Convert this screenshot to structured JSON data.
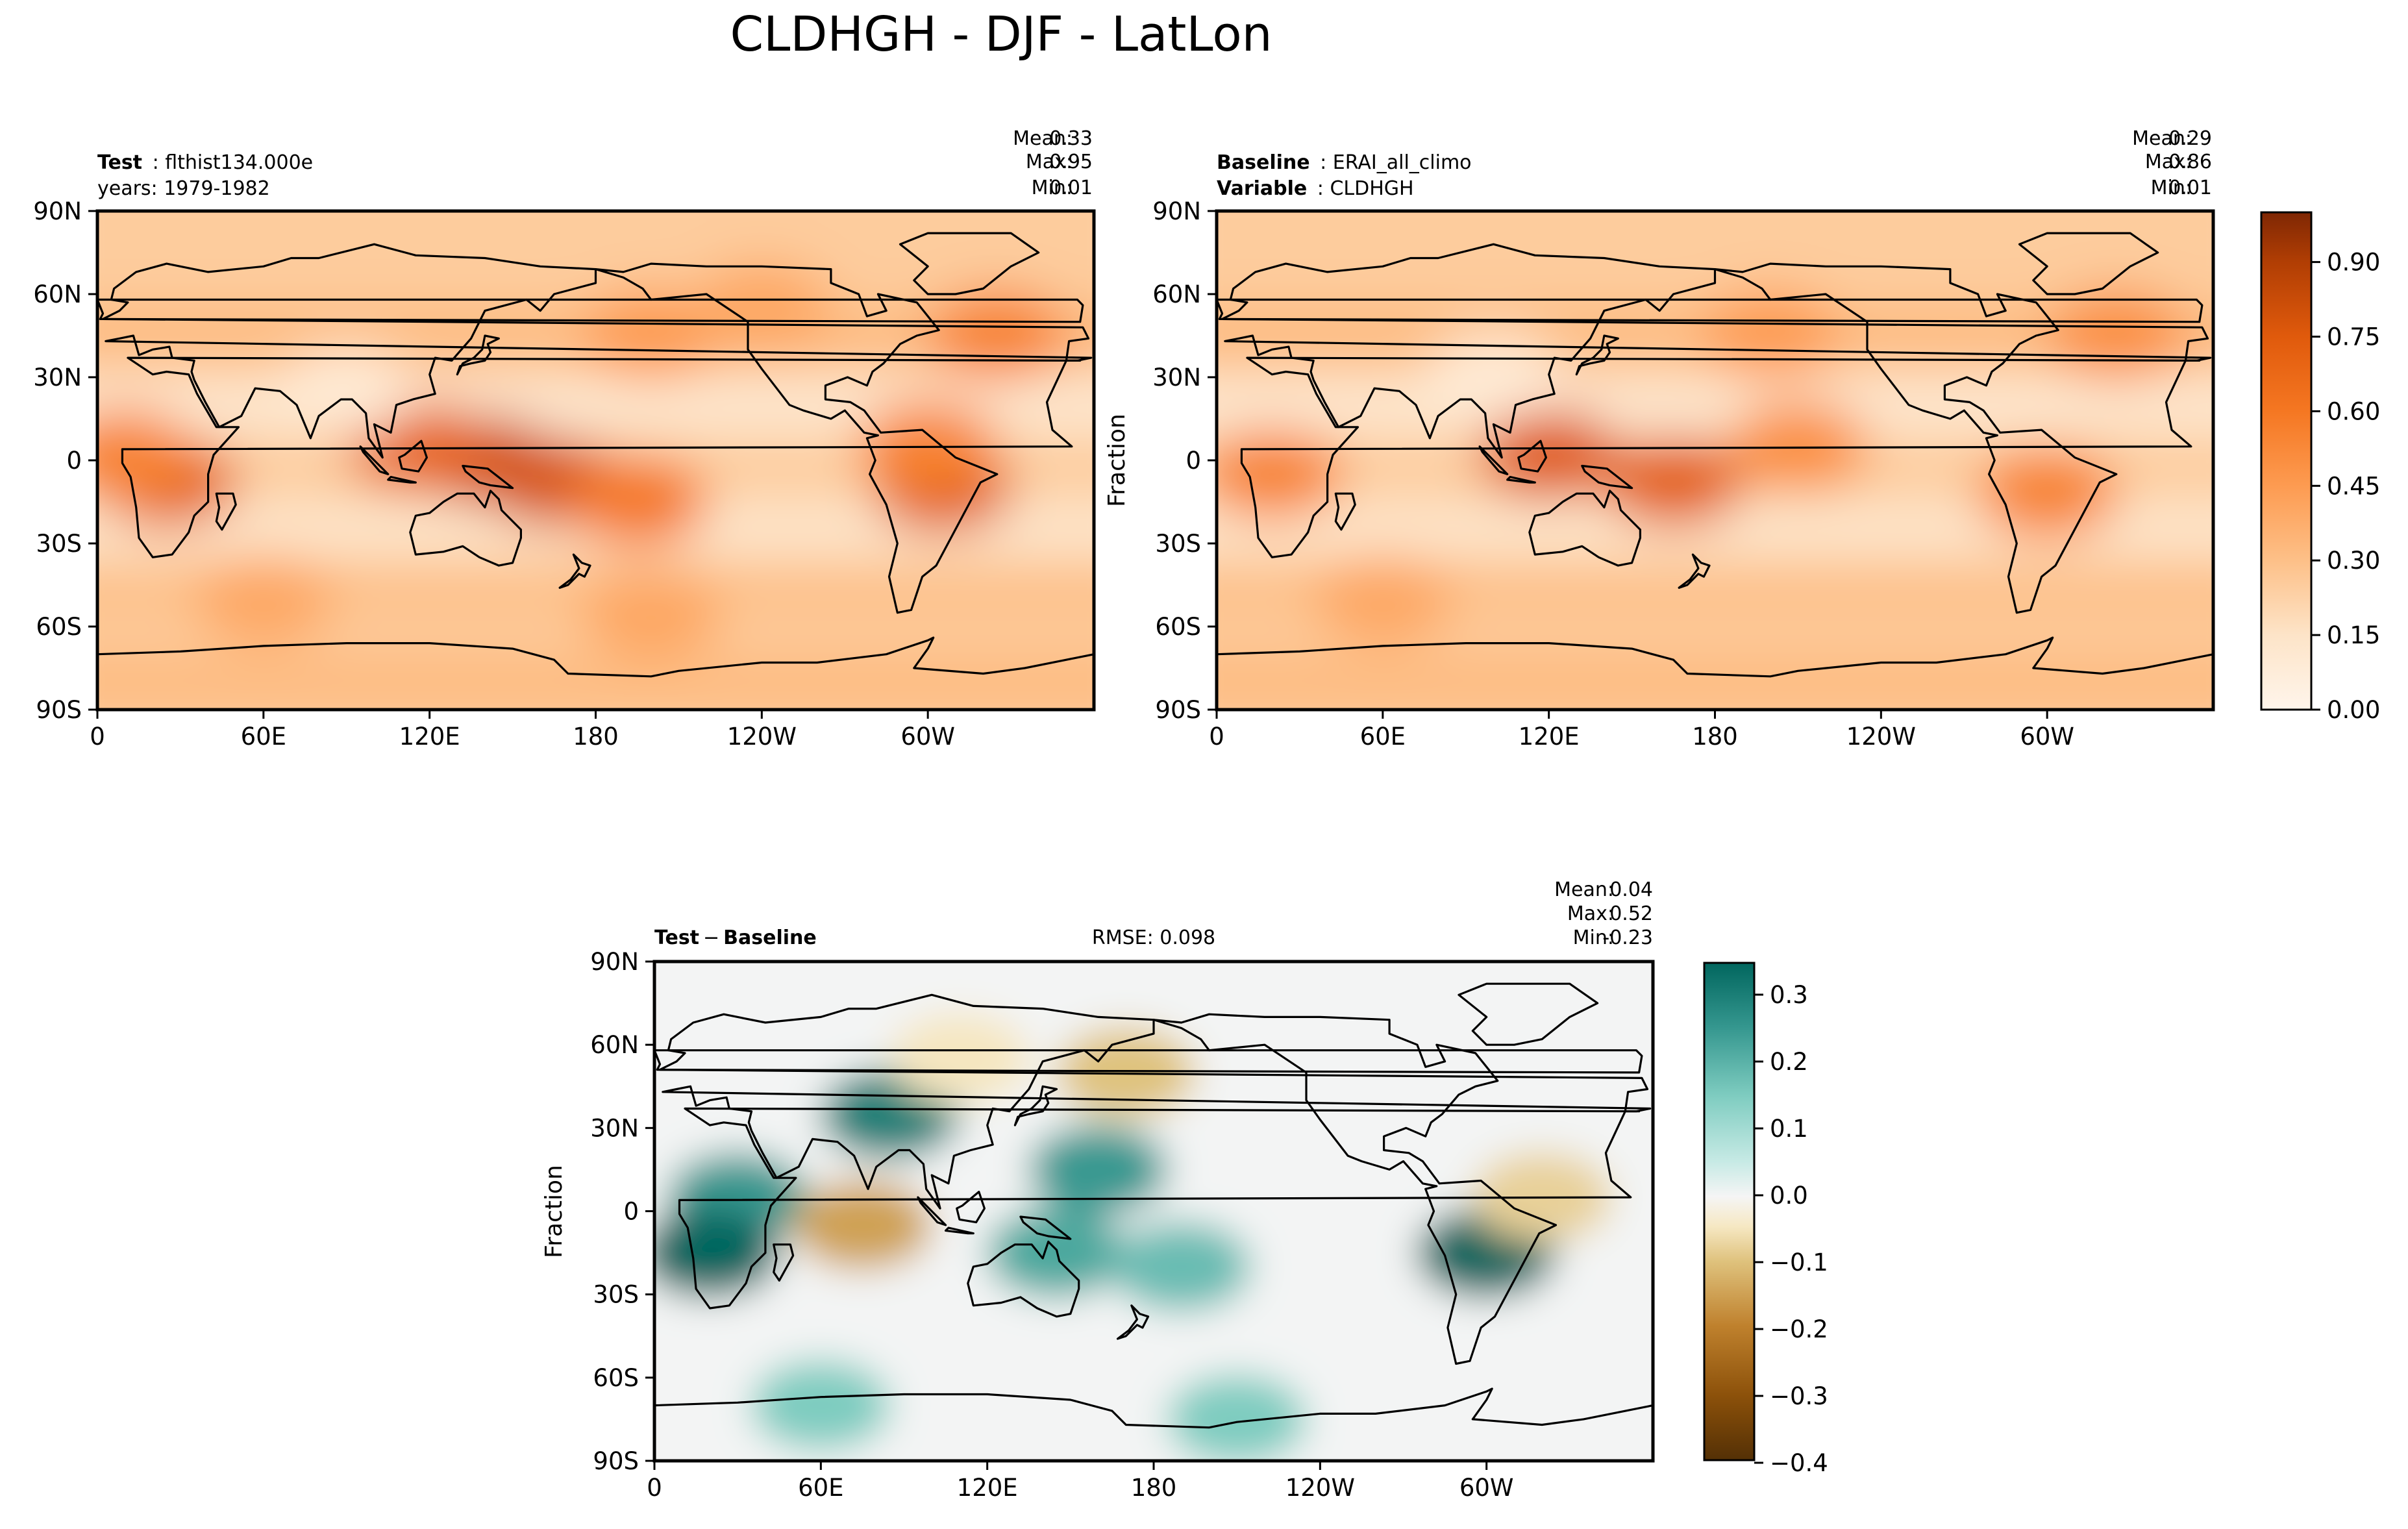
{
  "figure": {
    "title": "CLDHGH - DJF - LatLon"
  },
  "chart_data": [
    {
      "type": "heatmap",
      "panel": "test",
      "left_label_bold": "Test",
      "left_label_value": "flthist134.000e",
      "left_label_line2": "years: 1979-1982",
      "stats": {
        "mean": "0.33",
        "max": "0.95",
        "min": "0.01"
      },
      "stat_labels": {
        "mean": "Mean:",
        "max": "Max:",
        "min": "Min:"
      },
      "ylabel": "",
      "xticks": [
        "0",
        "60E",
        "120E",
        "180",
        "120W",
        "60W"
      ],
      "yticks": [
        "90N",
        "60N",
        "30N",
        "0",
        "30S",
        "60S",
        "90S"
      ],
      "xlim": [
        0,
        360
      ],
      "ylim": [
        -90,
        90
      ],
      "colormap": "Oranges",
      "field": [
        {
          "lon": 25,
          "lat": -8,
          "value": 0.72
        },
        {
          "lon": 10,
          "lat": 2,
          "value": 0.55
        },
        {
          "lon": 140,
          "lat": 0,
          "value": 0.8
        },
        {
          "lon": 165,
          "lat": -8,
          "value": 0.78
        },
        {
          "lon": 115,
          "lat": 5,
          "value": 0.7
        },
        {
          "lon": 195,
          "lat": -15,
          "value": 0.6
        },
        {
          "lon": 305,
          "lat": -10,
          "value": 0.75
        },
        {
          "lon": 300,
          "lat": 5,
          "value": 0.55
        },
        {
          "lon": 325,
          "lat": 45,
          "value": 0.55
        },
        {
          "lon": 200,
          "lat": 45,
          "value": 0.45
        },
        {
          "lon": 240,
          "lat": 55,
          "value": 0.4
        },
        {
          "lon": 60,
          "lat": -50,
          "value": 0.4
        },
        {
          "lon": 200,
          "lat": -55,
          "value": 0.4
        },
        {
          "lon": 90,
          "lat": 25,
          "value": 0.1
        }
      ]
    },
    {
      "type": "heatmap",
      "panel": "baseline",
      "left_label_bold": "Baseline",
      "left_label_value": "ERAI_all_climo",
      "left_label_bold2": "Variable",
      "left_label_value2": "CLDHGH",
      "stats": {
        "mean": "0.29",
        "max": "0.86",
        "min": "0.01"
      },
      "stat_labels": {
        "mean": "Mean:",
        "max": "Max:",
        "min": "Min:"
      },
      "ylabel": "Fraction",
      "xticks": [
        "0",
        "60E",
        "120E",
        "180",
        "120W",
        "60W"
      ],
      "yticks": [
        "90N",
        "60N",
        "30N",
        "0",
        "30S",
        "60S",
        "90S"
      ],
      "xlim": [
        0,
        360
      ],
      "ylim": [
        -90,
        90
      ],
      "colormap": "Oranges",
      "colorbar": {
        "ticks": [
          "0.00",
          "0.15",
          "0.30",
          "0.45",
          "0.60",
          "0.75",
          "0.90"
        ],
        "range": [
          0,
          1
        ]
      },
      "field": [
        {
          "lon": 120,
          "lat": 2,
          "value": 0.75
        },
        {
          "lon": 165,
          "lat": -8,
          "value": 0.72
        },
        {
          "lon": 20,
          "lat": -5,
          "value": 0.55
        },
        {
          "lon": 300,
          "lat": -12,
          "value": 0.55
        },
        {
          "lon": 210,
          "lat": 5,
          "value": 0.5
        },
        {
          "lon": 325,
          "lat": 45,
          "value": 0.5
        },
        {
          "lon": 200,
          "lat": 45,
          "value": 0.45
        },
        {
          "lon": 60,
          "lat": -50,
          "value": 0.4
        },
        {
          "lon": 100,
          "lat": 30,
          "value": 0.1
        }
      ]
    },
    {
      "type": "heatmap",
      "panel": "difference",
      "left_label_bold": "Test",
      "left_label_op": "−",
      "left_label_bold2": "Baseline",
      "center_label": "RMSE: 0.098",
      "stats": {
        "mean": "0.04",
        "max": "0.52",
        "min": "-0.23"
      },
      "stat_labels": {
        "mean": "Mean:",
        "max": "Max:",
        "min": "Min:"
      },
      "ylabel": "Fraction",
      "xticks": [
        "0",
        "60E",
        "120E",
        "180",
        "120W",
        "60W"
      ],
      "yticks": [
        "90N",
        "60N",
        "30N",
        "0",
        "30S",
        "60S",
        "90S"
      ],
      "xlim": [
        0,
        360
      ],
      "ylim": [
        -90,
        90
      ],
      "colormap": "BrBG",
      "colorbar": {
        "ticks": [
          "0.3",
          "0.2",
          "0.1",
          "0.0",
          "−0.1",
          "−0.2",
          "−0.3",
          "−0.4"
        ],
        "range": [
          -0.4,
          0.35
        ]
      },
      "field": [
        {
          "lon": 30,
          "lat": 5,
          "value": 0.25
        },
        {
          "lon": 20,
          "lat": -15,
          "value": 0.35
        },
        {
          "lon": 85,
          "lat": 35,
          "value": 0.3
        },
        {
          "lon": 160,
          "lat": 15,
          "value": 0.25
        },
        {
          "lon": 145,
          "lat": -15,
          "value": 0.22
        },
        {
          "lon": 190,
          "lat": -20,
          "value": 0.18
        },
        {
          "lon": 300,
          "lat": -15,
          "value": 0.35
        },
        {
          "lon": 75,
          "lat": -5,
          "value": -0.15
        },
        {
          "lon": 170,
          "lat": 50,
          "value": -0.1
        },
        {
          "lon": 110,
          "lat": 55,
          "value": -0.05
        },
        {
          "lon": 60,
          "lat": -70,
          "value": 0.15
        },
        {
          "lon": 210,
          "lat": -75,
          "value": 0.15
        },
        {
          "lon": 320,
          "lat": 5,
          "value": -0.08
        }
      ]
    }
  ],
  "continents": [
    [
      [
        -10,
        36
      ],
      [
        -17,
        21
      ],
      [
        -15,
        11
      ],
      [
        -8,
        5
      ],
      [
        9,
        4
      ],
      [
        9,
        -1
      ],
      [
        12,
        -6
      ],
      [
        14,
        -17
      ],
      [
        15,
        -28
      ],
      [
        20,
        -35
      ],
      [
        27,
        -34
      ],
      [
        33,
        -26
      ],
      [
        35,
        -20
      ],
      [
        40,
        -15
      ],
      [
        40,
        -5
      ],
      [
        42,
        2
      ],
      [
        51,
        12
      ],
      [
        43,
        12
      ],
      [
        36,
        24
      ],
      [
        33,
        31
      ],
      [
        25,
        32
      ],
      [
        20,
        31
      ],
      [
        11,
        37
      ],
      [
        -5,
        36
      ]
    ],
    [
      [
        -10,
        36
      ],
      [
        -9,
        43
      ],
      [
        -2,
        44
      ],
      [
        -4,
        48
      ],
      [
        2,
        51
      ],
      [
        8,
        54
      ],
      [
        11,
        57
      ],
      [
        5,
        58
      ],
      [
        6,
        62
      ],
      [
        14,
        68
      ],
      [
        25,
        71
      ],
      [
        40,
        68
      ],
      [
        60,
        70
      ],
      [
        70,
        73
      ],
      [
        80,
        73
      ],
      [
        100,
        78
      ],
      [
        115,
        74
      ],
      [
        140,
        73
      ],
      [
        160,
        70
      ],
      [
        180,
        69
      ],
      [
        180,
        64
      ],
      [
        165,
        60
      ],
      [
        160,
        54
      ],
      [
        155,
        58
      ],
      [
        140,
        54
      ],
      [
        135,
        44
      ],
      [
        128,
        36
      ],
      [
        122,
        37
      ],
      [
        120,
        31
      ],
      [
        122,
        24
      ],
      [
        114,
        22
      ],
      [
        108,
        20
      ],
      [
        106,
        10
      ],
      [
        100,
        13
      ],
      [
        103,
        1
      ],
      [
        98,
        8
      ],
      [
        97,
        17
      ],
      [
        92,
        22
      ],
      [
        88,
        22
      ],
      [
        80,
        16
      ],
      [
        77,
        8
      ],
      [
        72,
        20
      ],
      [
        66,
        25
      ],
      [
        57,
        26
      ],
      [
        52,
        16
      ],
      [
        44,
        12
      ],
      [
        39,
        21
      ],
      [
        35,
        29
      ],
      [
        34,
        32
      ],
      [
        35,
        36
      ],
      [
        27,
        37
      ],
      [
        26,
        41
      ],
      [
        20,
        40
      ],
      [
        15,
        38
      ],
      [
        13,
        45
      ],
      [
        8,
        44
      ],
      [
        3,
        43
      ],
      [
        -1,
        37
      ],
      [
        -6,
        36
      ]
    ],
    [
      [
        180,
        69
      ],
      [
        190,
        66
      ],
      [
        197,
        62
      ],
      [
        200,
        58
      ],
      [
        220,
        60
      ],
      [
        235,
        50
      ],
      [
        235,
        40
      ],
      [
        240,
        33
      ],
      [
        250,
        20
      ],
      [
        255,
        18
      ],
      [
        265,
        15
      ],
      [
        270,
        18
      ],
      [
        277,
        10
      ],
      [
        282,
        9
      ],
      [
        278,
        8
      ],
      [
        281,
        0
      ],
      [
        279,
        -5
      ],
      [
        285,
        -16
      ],
      [
        289,
        -30
      ],
      [
        286,
        -42
      ],
      [
        289,
        -55
      ],
      [
        294,
        -54
      ],
      [
        298,
        -42
      ],
      [
        303,
        -38
      ],
      [
        311,
        -23
      ],
      [
        319,
        -8
      ],
      [
        325,
        -5
      ],
      [
        310,
        1
      ],
      [
        298,
        11
      ],
      [
        283,
        10
      ],
      [
        277,
        18
      ],
      [
        272,
        21
      ],
      [
        263,
        22
      ],
      [
        263,
        27
      ],
      [
        271,
        30
      ],
      [
        278,
        27
      ],
      [
        280,
        32
      ],
      [
        284,
        35
      ],
      [
        290,
        42
      ],
      [
        296,
        45
      ],
      [
        304,
        47
      ],
      [
        300,
        52
      ],
      [
        296,
        57
      ],
      [
        282,
        60
      ],
      [
        285,
        54
      ],
      [
        278,
        52
      ],
      [
        275,
        60
      ],
      [
        265,
        64
      ],
      [
        265,
        69
      ],
      [
        240,
        70
      ],
      [
        220,
        70
      ],
      [
        200,
        71
      ],
      [
        190,
        68
      ],
      [
        180,
        69
      ]
    ],
    [
      [
        115,
        -20
      ],
      [
        113,
        -26
      ],
      [
        115,
        -34
      ],
      [
        125,
        -33
      ],
      [
        132,
        -31
      ],
      [
        138,
        -35
      ],
      [
        145,
        -38
      ],
      [
        150,
        -37
      ],
      [
        153,
        -28
      ],
      [
        153,
        -25
      ],
      [
        146,
        -18
      ],
      [
        145,
        -14
      ],
      [
        142,
        -11
      ],
      [
        140,
        -17
      ],
      [
        136,
        -12
      ],
      [
        130,
        -12
      ],
      [
        125,
        -15
      ],
      [
        120,
        -19
      ]
    ],
    [
      [
        300,
        60
      ],
      [
        310,
        60
      ],
      [
        320,
        62
      ],
      [
        330,
        70
      ],
      [
        340,
        75
      ],
      [
        330,
        82
      ],
      [
        300,
        82
      ],
      [
        290,
        78
      ],
      [
        300,
        70
      ],
      [
        295,
        65
      ]
    ],
    [
      [
        -5,
        50
      ],
      [
        -4,
        56
      ],
      [
        -6,
        58
      ],
      [
        0,
        58
      ],
      [
        2,
        53
      ],
      [
        1,
        51
      ]
    ],
    [
      [
        130,
        31
      ],
      [
        131,
        34
      ],
      [
        135,
        35
      ],
      [
        140,
        36
      ],
      [
        142,
        39
      ],
      [
        141,
        42
      ],
      [
        145,
        44
      ],
      [
        140,
        45
      ],
      [
        139,
        40
      ],
      [
        136,
        37
      ],
      [
        132,
        35
      ]
    ],
    [
      [
        95,
        5
      ],
      [
        100,
        0
      ],
      [
        105,
        -5
      ],
      [
        102,
        -4
      ],
      [
        96,
        3
      ]
    ],
    [
      [
        106,
        -6
      ],
      [
        115,
        -8
      ],
      [
        113,
        -8
      ],
      [
        105,
        -7
      ]
    ],
    [
      [
        109,
        1
      ],
      [
        110,
        -3
      ],
      [
        116,
        -4
      ],
      [
        119,
        1
      ],
      [
        117,
        7
      ],
      [
        111,
        2
      ]
    ],
    [
      [
        132,
        -2
      ],
      [
        141,
        -3
      ],
      [
        150,
        -10
      ],
      [
        142,
        -9
      ],
      [
        138,
        -8
      ],
      [
        133,
        -4
      ]
    ],
    [
      [
        43,
        -12
      ],
      [
        49,
        -12
      ],
      [
        50,
        -16
      ],
      [
        45,
        -25
      ],
      [
        43,
        -22
      ],
      [
        44,
        -17
      ]
    ],
    [
      [
        172,
        -34
      ],
      [
        175,
        -37
      ],
      [
        178,
        -38
      ],
      [
        176,
        -42
      ],
      [
        174,
        -41
      ],
      [
        170,
        -45
      ],
      [
        167,
        -46
      ],
      [
        171,
        -43
      ],
      [
        174,
        -39
      ]
    ],
    [
      [
        0,
        -70
      ],
      [
        30,
        -69
      ],
      [
        60,
        -67
      ],
      [
        90,
        -66
      ],
      [
        120,
        -66
      ],
      [
        150,
        -68
      ],
      [
        165,
        -72
      ],
      [
        170,
        -77
      ],
      [
        200,
        -78
      ],
      [
        210,
        -76
      ],
      [
        240,
        -73
      ],
      [
        260,
        -73
      ],
      [
        285,
        -70
      ],
      [
        300,
        -65
      ],
      [
        302,
        -64
      ],
      [
        300,
        -68
      ],
      [
        295,
        -75
      ],
      [
        320,
        -77
      ],
      [
        335,
        -75
      ],
      [
        360,
        -70
      ],
      [
        360,
        -90
      ],
      [
        0,
        -90
      ]
    ]
  ]
}
